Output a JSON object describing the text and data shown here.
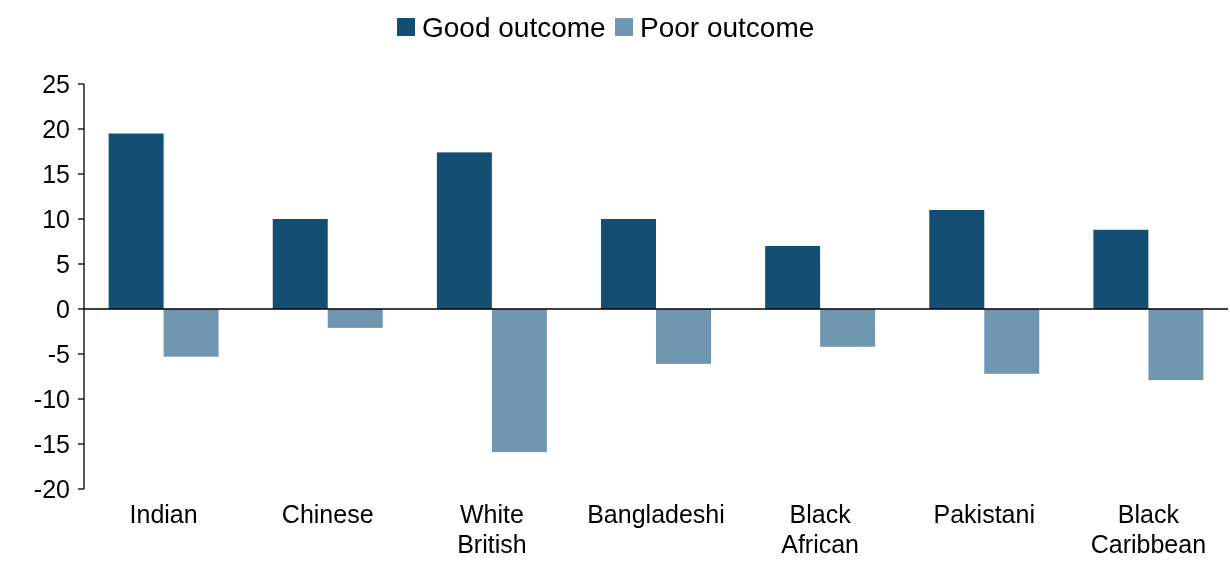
{
  "chart_data": {
    "type": "bar",
    "categories": [
      "Indian",
      "Chinese",
      "White British",
      "Bangladeshi",
      "Black African",
      "Pakistani",
      "Black Caribbean"
    ],
    "series": [
      {
        "name": "Good outcome",
        "color": "#134f72",
        "values": [
          19.5,
          10,
          17.4,
          10,
          7,
          11,
          8.8
        ]
      },
      {
        "name": "Poor outcome",
        "color": "#7096b0",
        "values": [
          -5.3,
          -2.1,
          -15.9,
          -6.1,
          -4.2,
          -7.2,
          -7.9
        ]
      }
    ],
    "ylim": [
      -20,
      25
    ],
    "yticks": [
      -20,
      -15,
      -10,
      -5,
      0,
      5,
      10,
      15,
      20,
      25
    ],
    "legend": "top"
  }
}
